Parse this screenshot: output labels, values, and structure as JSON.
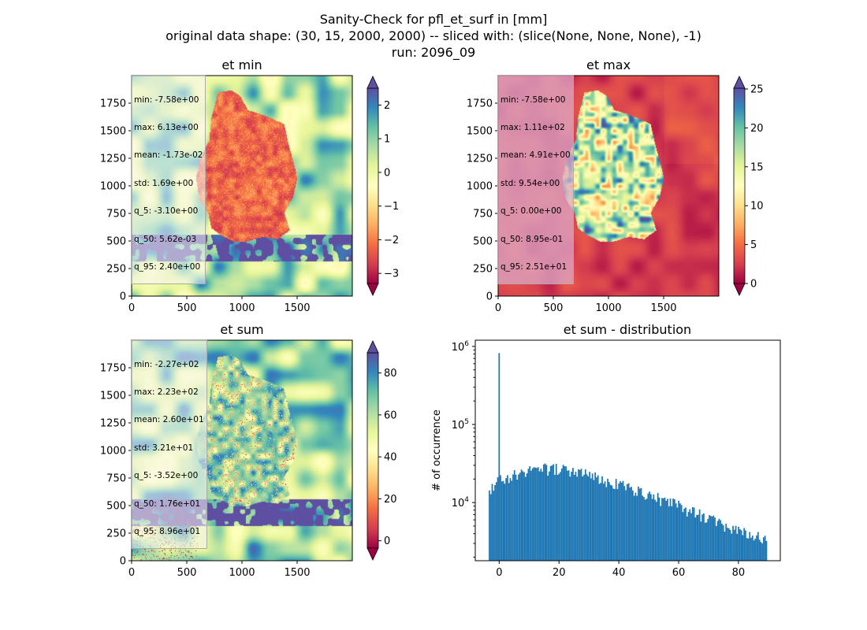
{
  "figure": {
    "suptitle_lines": [
      "Sanity-Check for pfl_et_surf in [mm]",
      "original data shape: (30, 15, 2000, 2000) -- sliced with: (slice(None, None, None), -1)",
      "run: 2096_09"
    ]
  },
  "chart_data": [
    {
      "type": "heatmap",
      "title": "et min",
      "colormap": "Spectral",
      "x_ticks": [
        "0",
        "500",
        "1000",
        "1500"
      ],
      "y_ticks": [
        "0",
        "250",
        "500",
        "750",
        "1000",
        "1250",
        "1500",
        "1750"
      ],
      "xlim": [
        0,
        2000
      ],
      "ylim": [
        0,
        2000
      ],
      "colorbar": {
        "ticks": [
          "2",
          "1",
          "0",
          "−1",
          "−2",
          "−3"
        ],
        "range": [
          -3.3,
          2.5
        ],
        "extend": "both"
      },
      "stats": [
        "min: -7.58e+00",
        "max: 6.13e+00",
        "mean: -1.73e-02",
        "std: 1.69e+00",
        "q_5: -3.10e+00",
        "q_50: 5.62e-03",
        "q_95: 2.40e+00"
      ]
    },
    {
      "type": "heatmap",
      "title": "et max",
      "colormap": "Spectral",
      "x_ticks": [
        "0",
        "500",
        "1000",
        "1500"
      ],
      "y_ticks": [
        "0",
        "250",
        "500",
        "750",
        "1000",
        "1250",
        "1500",
        "1750"
      ],
      "xlim": [
        0,
        2000
      ],
      "ylim": [
        0,
        2000
      ],
      "colorbar": {
        "ticks": [
          "25",
          "20",
          "15",
          "10",
          "5",
          "0"
        ],
        "range": [
          0,
          25.1
        ],
        "extend": "both"
      },
      "stats": [
        "min: -7.58e+00",
        "max: 1.11e+02",
        "mean: 4.91e+00",
        "std: 9.54e+00",
        "q_5: 0.00e+00",
        "q_50: 8.95e-01",
        "q_95: 2.51e+01"
      ]
    },
    {
      "type": "heatmap",
      "title": "et sum",
      "colormap": "Spectral",
      "x_ticks": [
        "0",
        "500",
        "1000",
        "1500"
      ],
      "y_ticks": [
        "0",
        "250",
        "500",
        "750",
        "1000",
        "1250",
        "1500",
        "1750"
      ],
      "xlim": [
        0,
        2000
      ],
      "ylim": [
        0,
        2000
      ],
      "colorbar": {
        "ticks": [
          "80",
          "60",
          "40",
          "20",
          "0"
        ],
        "range": [
          -3.5,
          89.6
        ],
        "extend": "both"
      },
      "stats": [
        "min: -2.27e+02",
        "max: 2.23e+02",
        "mean: 2.60e+01",
        "std: 3.21e+01",
        "q_5: -3.52e+00",
        "q_50: 1.76e+01",
        "q_95: 8.96e+01"
      ]
    },
    {
      "type": "bar",
      "title": "et sum - distribution",
      "ylabel": "# of occurrence",
      "y_scale": "log",
      "color": "#1f77b4",
      "x_ticks": [
        "0",
        "20",
        "40",
        "60",
        "80"
      ],
      "xlim": [
        -8,
        94
      ],
      "ylim": [
        1800,
        1200000
      ],
      "y_tick_labels": [
        "10^4",
        "10^5",
        "10^6"
      ],
      "bins": {
        "start": -3.5,
        "end": 89.6,
        "count": 200
      },
      "spike": {
        "x": -0.1,
        "count": 820000
      },
      "profile": [
        {
          "x": -3.5,
          "count": 13000
        },
        {
          "x": 0,
          "count": 19000
        },
        {
          "x": 5,
          "count": 22000
        },
        {
          "x": 10,
          "count": 25000
        },
        {
          "x": 15,
          "count": 27000
        },
        {
          "x": 20,
          "count": 26500
        },
        {
          "x": 25,
          "count": 25000
        },
        {
          "x": 30,
          "count": 22000
        },
        {
          "x": 40,
          "count": 17000
        },
        {
          "x": 50,
          "count": 12500
        },
        {
          "x": 60,
          "count": 9000
        },
        {
          "x": 70,
          "count": 6200
        },
        {
          "x": 80,
          "count": 4200
        },
        {
          "x": 89.6,
          "count": 3300
        }
      ]
    }
  ]
}
